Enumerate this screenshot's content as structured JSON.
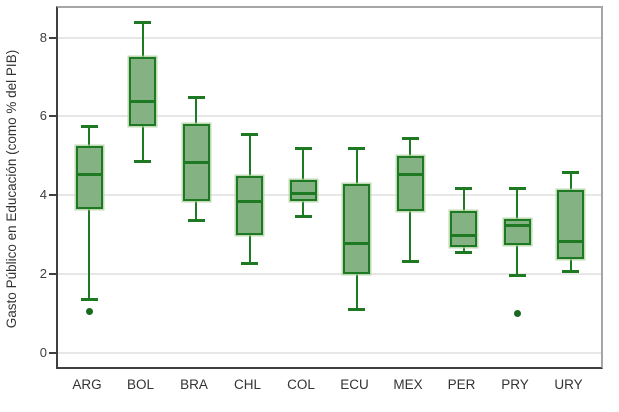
{
  "chart_data": {
    "type": "boxplot",
    "title": "",
    "xlabel": "",
    "ylabel": "Gasto Público en Educación (como % del PIB)",
    "categories": [
      "ARG",
      "BOL",
      "BRA",
      "CHL",
      "COL",
      "ECU",
      "MEX",
      "PER",
      "PRY",
      "URY"
    ],
    "yticks": [
      0,
      2,
      4,
      6,
      8
    ],
    "ylim": [
      -0.4,
      8.8
    ],
    "grid": "horizontal-light-gray",
    "legend": "none",
    "series": [
      {
        "category": "ARG",
        "whisker_low": 1.4,
        "q1": 3.7,
        "median": 4.6,
        "q3": 5.3,
        "whisker_high": 5.8,
        "outliers": [
          1.1
        ]
      },
      {
        "category": "BOL",
        "whisker_low": 4.9,
        "q1": 5.8,
        "median": 6.45,
        "q3": 7.55,
        "whisker_high": 8.45,
        "outliers": []
      },
      {
        "category": "BRA",
        "whisker_low": 3.4,
        "q1": 3.9,
        "median": 4.9,
        "q3": 5.85,
        "whisker_high": 6.55,
        "outliers": []
      },
      {
        "category": "CHL",
        "whisker_low": 2.3,
        "q1": 3.05,
        "median": 3.9,
        "q3": 4.55,
        "whisker_high": 5.6,
        "outliers": []
      },
      {
        "category": "COL",
        "whisker_low": 3.5,
        "q1": 3.9,
        "median": 4.1,
        "q3": 4.45,
        "whisker_high": 5.25,
        "outliers": []
      },
      {
        "category": "ECU",
        "whisker_low": 1.15,
        "q1": 2.05,
        "median": 2.85,
        "q3": 4.35,
        "whisker_high": 5.25,
        "outliers": []
      },
      {
        "category": "MEX",
        "whisker_low": 2.35,
        "q1": 3.65,
        "median": 4.6,
        "q3": 5.05,
        "whisker_high": 5.5,
        "outliers": []
      },
      {
        "category": "PER",
        "whisker_low": 2.6,
        "q1": 2.75,
        "median": 3.05,
        "q3": 3.65,
        "whisker_high": 4.25,
        "outliers": []
      },
      {
        "category": "PRY",
        "whisker_low": 2.0,
        "q1": 2.8,
        "median": 3.3,
        "q3": 3.45,
        "whisker_high": 4.25,
        "outliers": [
          1.05
        ]
      },
      {
        "category": "URY",
        "whisker_low": 2.1,
        "q1": 2.45,
        "median": 2.9,
        "q3": 4.2,
        "whisker_high": 4.65,
        "outliers": []
      }
    ],
    "colors": {
      "box_fill": "#85b283",
      "box_border": "#1e7a22",
      "box_halo": "#aecfa0",
      "whisker": "#1e7a22",
      "outlier": "#186a1e",
      "gridline": "#e7e7e7",
      "frame_light": "#a6a6a6",
      "axis_dark": "#3f3f3f",
      "text": "#333333"
    }
  }
}
